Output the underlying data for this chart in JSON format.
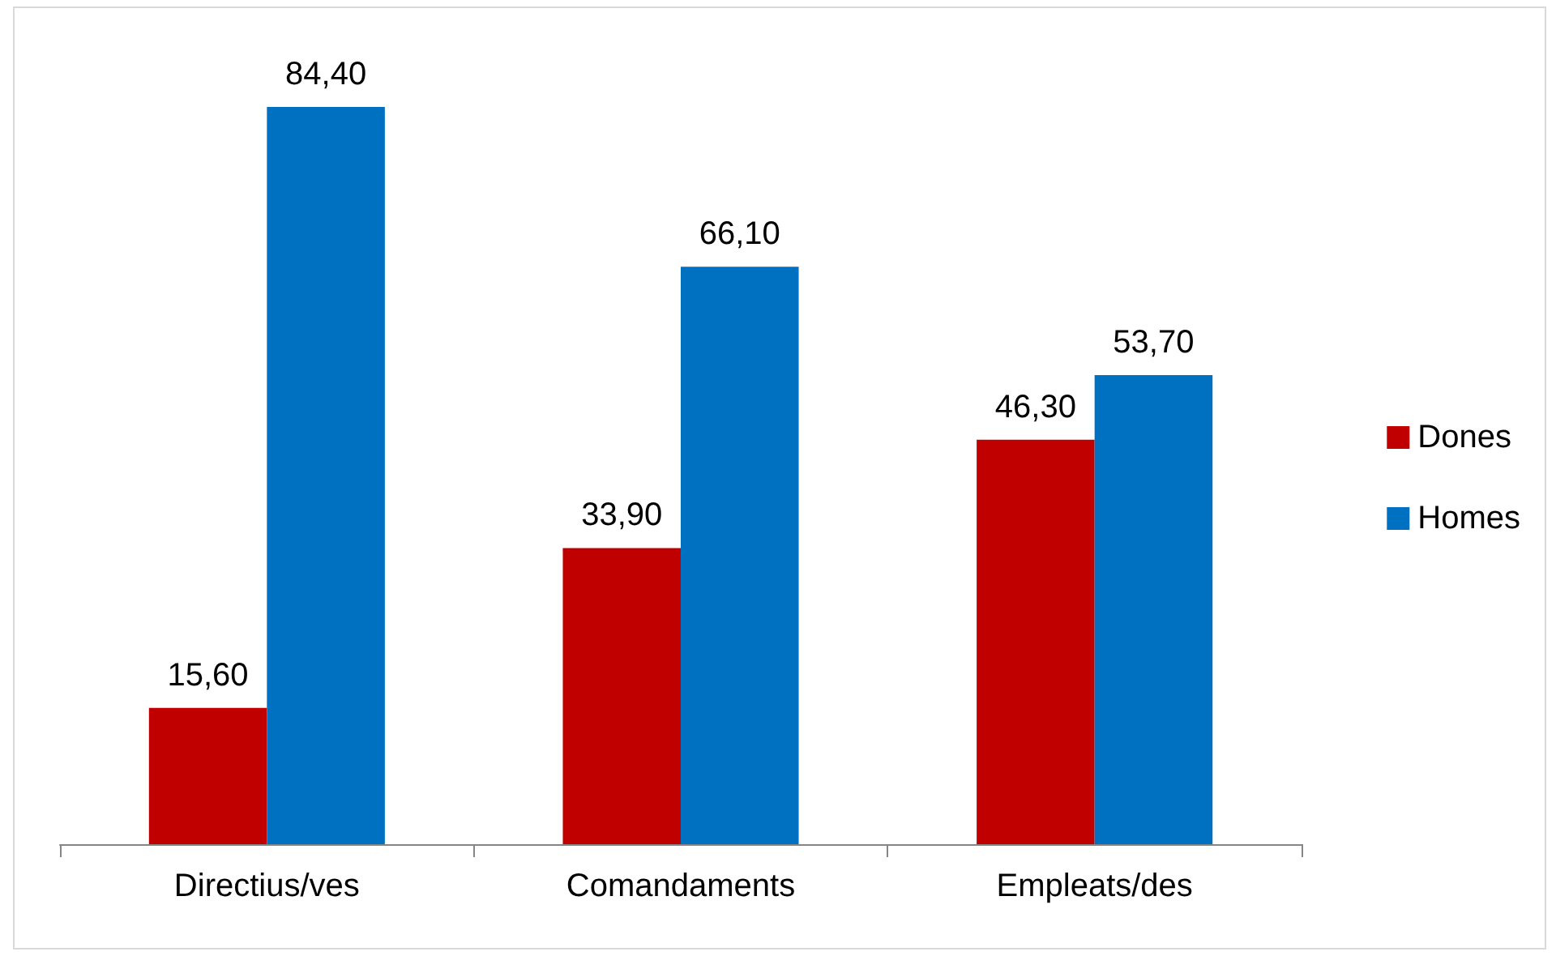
{
  "chart_data": {
    "type": "bar",
    "categories": [
      "Directius/ves",
      "Comandaments",
      "Empleats/des"
    ],
    "series": [
      {
        "name": "Dones",
        "color": "#c00000",
        "values": [
          15.6,
          33.9,
          46.3
        ],
        "value_labels": [
          "15,60",
          "33,90",
          "46,30"
        ]
      },
      {
        "name": "Homes",
        "color": "#0070c0",
        "values": [
          84.4,
          66.1,
          53.7
        ],
        "value_labels": [
          "84,40",
          "66,10",
          "53,70"
        ]
      }
    ],
    "legend": "right"
  }
}
